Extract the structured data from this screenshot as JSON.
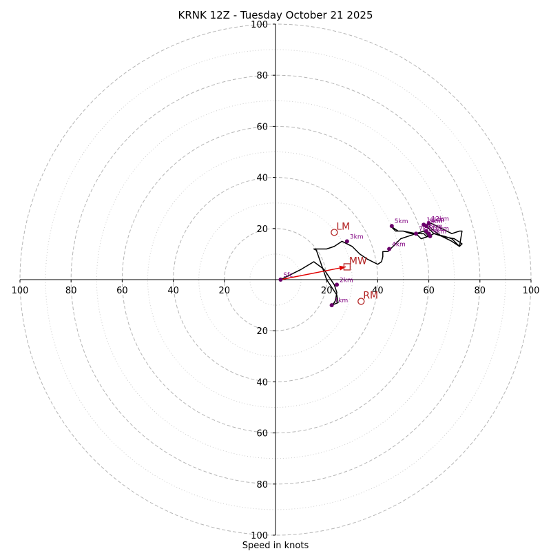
{
  "chart_data": {
    "type": "scatter",
    "subtype": "hodograph",
    "title": "KRNK 12Z - Tuesday October 21 2025",
    "xlabel": "Speed in knots",
    "xlim": [
      -100,
      100
    ],
    "ylim": [
      -100,
      100
    ],
    "ticks_x": [
      "100",
      "80",
      "60",
      "40",
      "20",
      "20",
      "40",
      "60",
      "80",
      "100"
    ],
    "ticks_y": [
      "100",
      "80",
      "60",
      "40",
      "20",
      "20",
      "40",
      "60",
      "80",
      "100"
    ],
    "rings_major": [
      20,
      40,
      60,
      80,
      100
    ],
    "rings_minor": [
      10,
      30,
      50,
      70,
      90
    ],
    "trace": {
      "name": "hodograph",
      "color": "#000000",
      "u": [
        2,
        6,
        10,
        15,
        19,
        21,
        23,
        24,
        23.5,
        23,
        22,
        24.5,
        24,
        22,
        20,
        16,
        15,
        17,
        20,
        23,
        26,
        28,
        30,
        33,
        36,
        40,
        41.5,
        42,
        42,
        44,
        46,
        49,
        52,
        55,
        58,
        60,
        57,
        55,
        50,
        48,
        45,
        47,
        50,
        53,
        56,
        58,
        59,
        60,
        62,
        66,
        69,
        72,
        73,
        72,
        69,
        65,
        61,
        59,
        60,
        62,
        65,
        70,
        73,
        72,
        69,
        65,
        62,
        60
      ],
      "v": [
        0,
        2,
        4,
        7,
        4,
        1,
        -2,
        -5,
        -8,
        -9,
        -10,
        -9,
        -6,
        -3,
        0,
        11.5,
        12,
        12,
        12,
        13,
        15,
        14,
        13,
        10,
        8,
        6,
        7,
        9,
        11,
        11,
        13,
        16,
        17,
        18,
        19,
        17,
        16,
        18,
        19,
        19,
        21,
        19,
        19,
        18,
        18,
        18,
        17,
        17,
        18,
        17,
        16,
        13,
        19,
        19,
        18,
        20,
        22,
        21,
        20,
        18,
        17,
        16,
        14,
        13,
        15,
        17,
        19,
        21
      ]
    },
    "height_points": [
      {
        "label": "Sfc",
        "u": 2,
        "v": 0
      },
      {
        "label": "1km",
        "u": 22,
        "v": -10
      },
      {
        "label": "2km",
        "u": 24,
        "v": -2
      },
      {
        "label": "3km",
        "u": 28,
        "v": 15
      },
      {
        "label": "4km",
        "u": 44.5,
        "v": 12
      },
      {
        "label": "5km",
        "u": 45.5,
        "v": 21
      },
      {
        "label": "6km",
        "u": 59,
        "v": 19
      },
      {
        "label": "7km",
        "u": 55,
        "v": 18
      },
      {
        "label": "8km",
        "u": 59,
        "v": 21
      },
      {
        "label": "9km",
        "u": 60.5,
        "v": 17
      },
      {
        "label": "10km",
        "u": 60,
        "v": 18
      },
      {
        "label": "11km",
        "u": 58,
        "v": 21.5
      },
      {
        "label": "12km",
        "u": 60,
        "v": 22
      }
    ],
    "point_color": "#6a006a",
    "motion_points": [
      {
        "label": "LM",
        "u": 23,
        "v": 18.5,
        "marker": "circle"
      },
      {
        "label": "MW",
        "u": 28,
        "v": 5,
        "marker": "square"
      },
      {
        "label": "RM",
        "u": 33.5,
        "v": -8.5,
        "marker": "circle"
      }
    ],
    "motion_color": "#b22222",
    "shear_vector": {
      "from": {
        "u": 2,
        "v": 0
      },
      "to": {
        "u": 27.5,
        "v": 5
      },
      "color": "#e00000"
    }
  }
}
